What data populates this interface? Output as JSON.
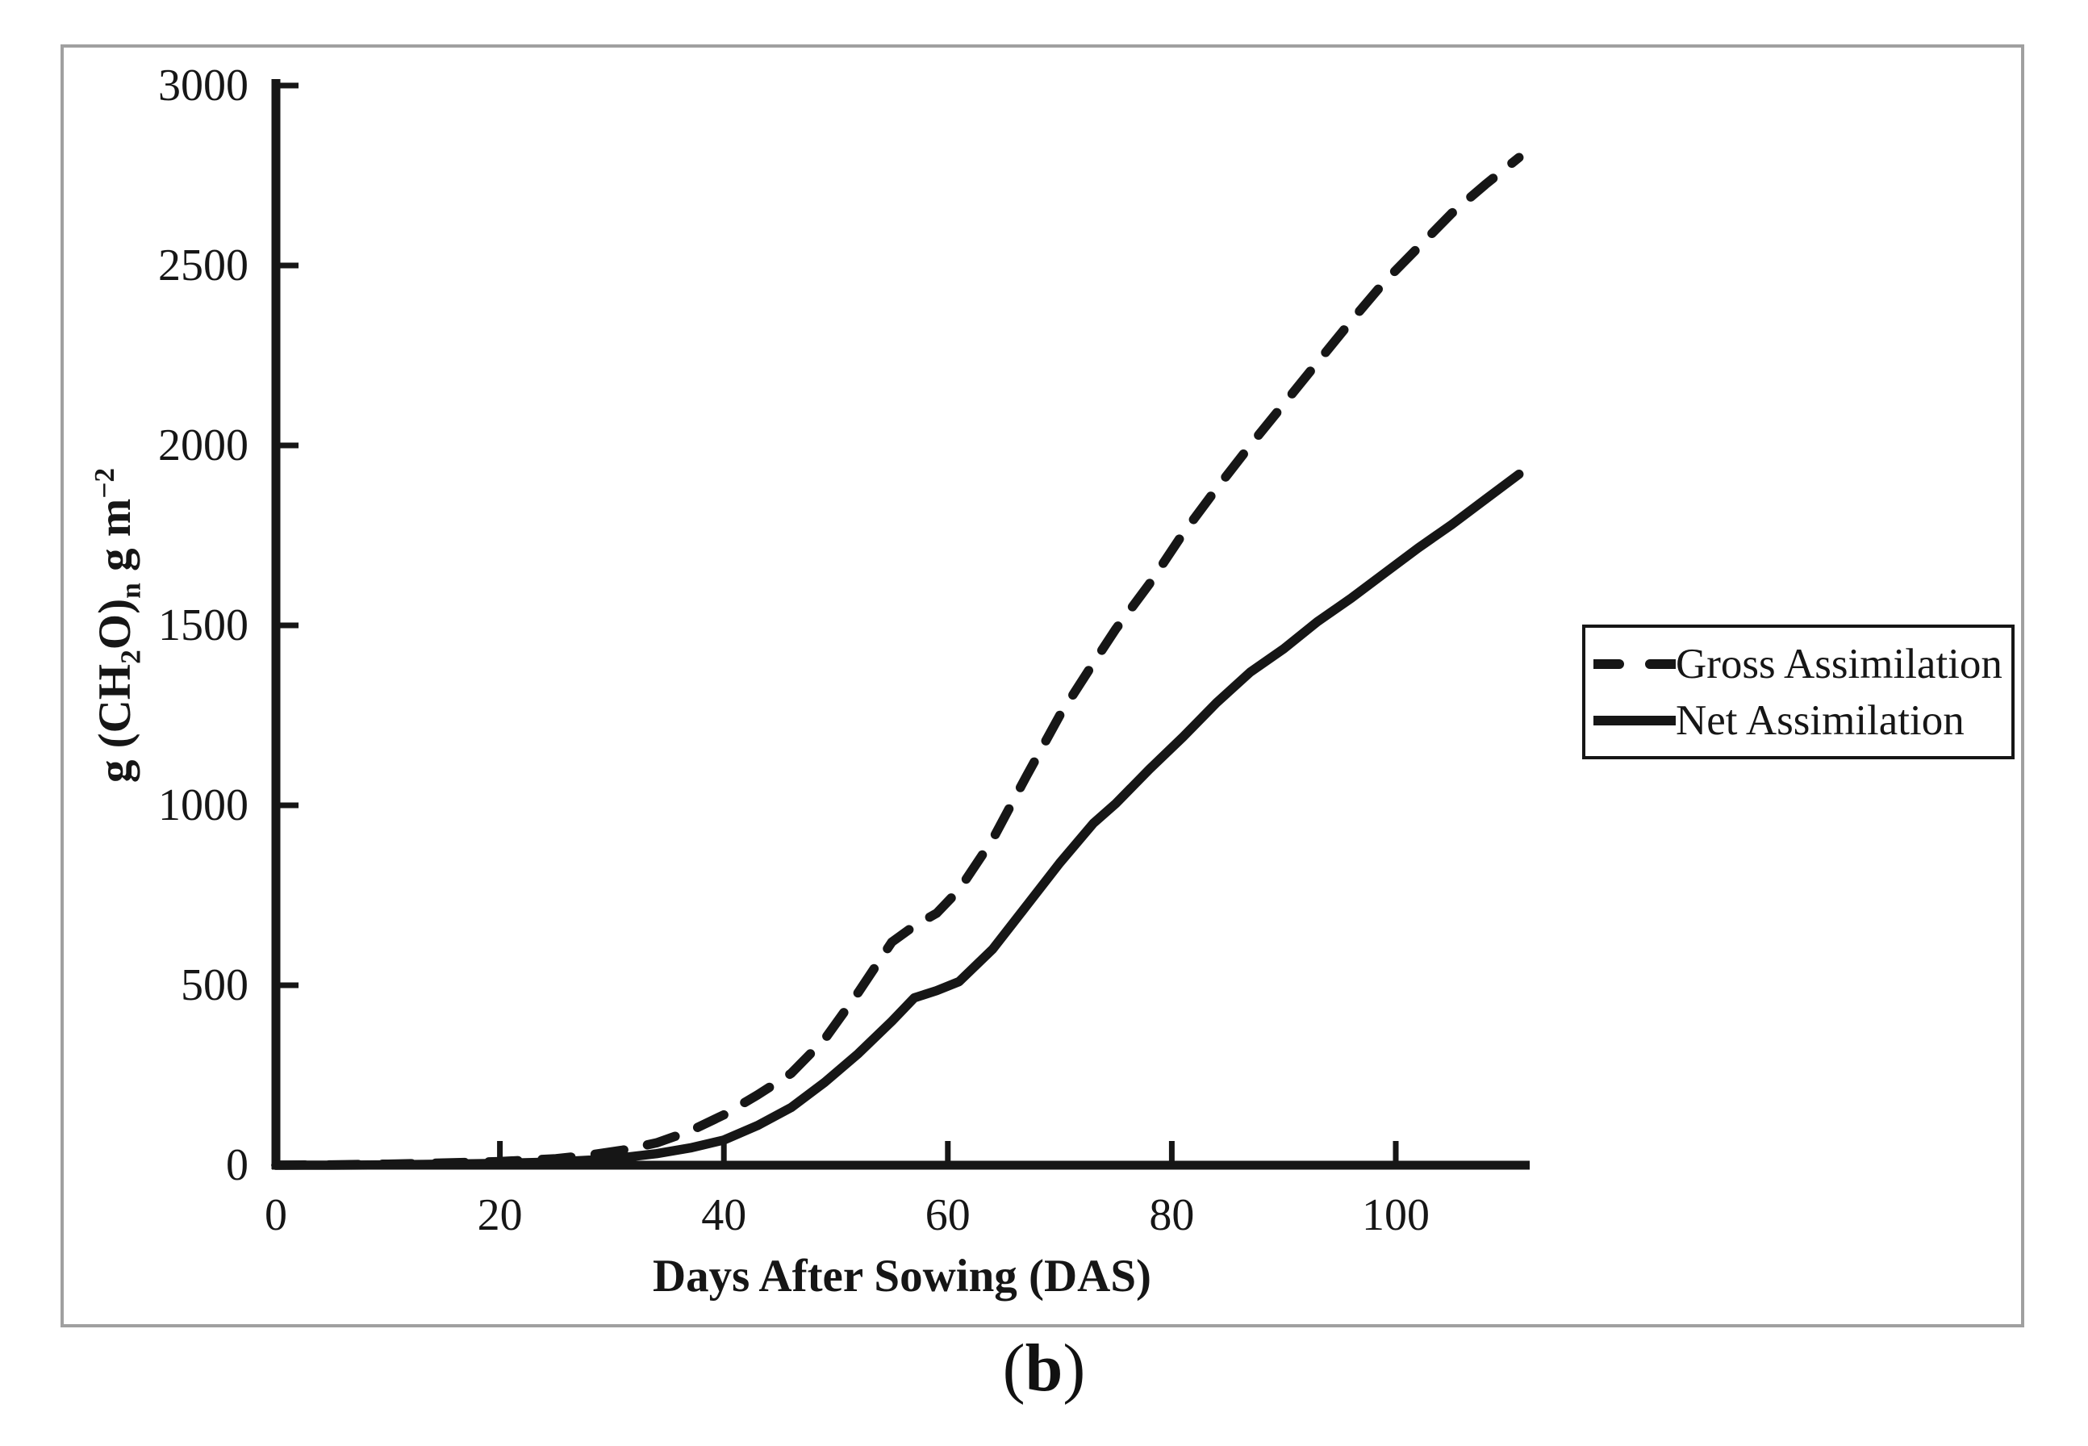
{
  "figure": {
    "caption": {
      "plain": "(b)",
      "parts": [
        {
          "text": "(",
          "bold": false
        },
        {
          "text": "b",
          "bold": true
        },
        {
          "text": ")",
          "bold": false
        }
      ]
    }
  },
  "chart_data": {
    "type": "line",
    "title": "",
    "xlabel": "Days After Sowing (DAS)",
    "ylabel": "g (CH2O)n g m-2",
    "ylabel_parts": [
      {
        "text": "g (CH",
        "script": "none"
      },
      {
        "text": "2",
        "script": "sub"
      },
      {
        "text": "O)",
        "script": "none"
      },
      {
        "text": "n",
        "script": "sub"
      },
      {
        "text": " g m",
        "script": "none"
      },
      {
        "text": "−2",
        "script": "sup"
      }
    ],
    "xlim": [
      0,
      112
    ],
    "ylim": [
      0,
      3000
    ],
    "x_ticks": [
      0,
      20,
      40,
      60,
      80,
      100
    ],
    "y_ticks": [
      0,
      500,
      1000,
      1500,
      2000,
      2500,
      3000
    ],
    "grid": false,
    "legend": {
      "position": "right-outside",
      "border": true
    },
    "x": [
      0,
      5,
      10,
      15,
      20,
      25,
      28,
      31,
      34,
      37,
      40,
      43,
      46,
      49,
      52,
      55,
      57,
      59,
      61,
      64,
      67,
      70,
      73,
      75,
      78,
      81,
      84,
      87,
      90,
      93,
      96,
      99,
      102,
      105,
      108,
      111
    ],
    "series": [
      {
        "name": "Gross Assimilation",
        "style": "dashed",
        "color": "#161616",
        "values": [
          0,
          1,
          3,
          6,
          10,
          18,
          28,
          42,
          62,
          95,
          140,
          195,
          255,
          350,
          480,
          620,
          665,
          700,
          765,
          905,
          1080,
          1250,
          1395,
          1490,
          1615,
          1755,
          1880,
          2000,
          2115,
          2230,
          2345,
          2455,
          2550,
          2645,
          2725,
          2800
        ]
      },
      {
        "name": "Net Assimilation",
        "style": "solid",
        "color": "#161616",
        "values": [
          0,
          0,
          1,
          3,
          5,
          9,
          14,
          21,
          32,
          48,
          70,
          110,
          160,
          230,
          310,
          400,
          465,
          485,
          510,
          600,
          720,
          840,
          950,
          1005,
          1100,
          1190,
          1285,
          1370,
          1435,
          1510,
          1575,
          1645,
          1715,
          1780,
          1850,
          1920
        ]
      }
    ]
  },
  "colors": {
    "curve": "#161616",
    "axis": "#161616",
    "figure_border": "#a0a0a0",
    "legend_border": "#161616",
    "background": "#ffffff"
  }
}
